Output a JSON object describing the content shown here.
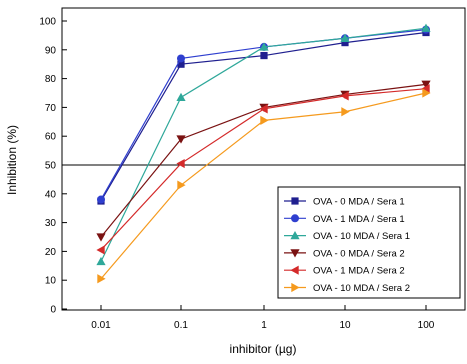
{
  "chart_data": {
    "type": "line",
    "xscale": "log",
    "x": [
      0.01,
      0.1,
      1,
      10,
      100
    ],
    "x_tick_labels": [
      "0.01",
      "0.1",
      "1",
      "10",
      "100"
    ],
    "xlabel": "inhibitor (µg)",
    "ylabel": "Inhibition (%)",
    "ylim": [
      0,
      100
    ],
    "y_ticks": [
      0,
      10,
      20,
      30,
      40,
      50,
      60,
      70,
      80,
      90,
      100
    ],
    "reference_line_y": 50,
    "grid": false,
    "legend_position": "bottom-right",
    "series": [
      {
        "name": "OVA - 0 MDA / Sera 1",
        "color": "#1f1f8f",
        "marker": "square",
        "values": [
          37.5,
          85,
          88,
          92.5,
          96
        ]
      },
      {
        "name": "OVA - 1 MDA / Sera 1",
        "color": "#2f3fcf",
        "marker": "circle",
        "values": [
          38,
          87,
          91,
          94,
          97
        ]
      },
      {
        "name": "OVA - 10 MDA / Sera 1",
        "color": "#2fa89a",
        "marker": "triangle-up",
        "values": [
          16.5,
          73.5,
          91,
          94,
          97.5
        ]
      },
      {
        "name": "OVA - 0 MDA / Sera 2",
        "color": "#7a1212",
        "marker": "triangle-down",
        "values": [
          25,
          59,
          70,
          74.5,
          78
        ]
      },
      {
        "name": "OVA - 1 MDA / Sera 2",
        "color": "#d42a2a",
        "marker": "triangle-left",
        "values": [
          20.5,
          50.5,
          69.5,
          74,
          76.5
        ]
      },
      {
        "name": "OVA - 10 MDA / Sera 2",
        "color": "#f59a1e",
        "marker": "triangle-right",
        "values": [
          10.5,
          43,
          65.5,
          68.5,
          75
        ]
      }
    ]
  }
}
